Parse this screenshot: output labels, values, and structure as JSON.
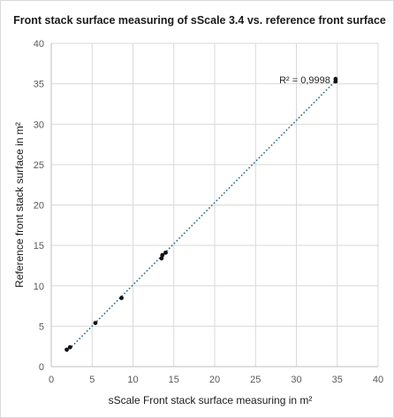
{
  "chart_data": {
    "type": "scatter",
    "title": "Front stack surface measuring of sScale 3.4 vs. reference front surface",
    "xlabel": "sScale Front stack surface measuring in m²",
    "ylabel": "Reference front stack surface in m²",
    "xlim": [
      0,
      40
    ],
    "ylim": [
      0,
      40
    ],
    "x_ticks": [
      0,
      5,
      10,
      15,
      20,
      25,
      30,
      35,
      40
    ],
    "y_ticks": [
      0,
      5,
      10,
      15,
      20,
      25,
      30,
      35,
      40
    ],
    "grid": true,
    "legend": "none",
    "series": [
      {
        "points": [
          {
            "x": 1.9,
            "y": 2.1
          },
          {
            "x": 2.3,
            "y": 2.4
          },
          {
            "x": 5.4,
            "y": 5.4
          },
          {
            "x": 8.6,
            "y": 8.5
          },
          {
            "x": 13.5,
            "y": 13.4
          },
          {
            "x": 13.6,
            "y": 13.8
          },
          {
            "x": 14.0,
            "y": 14.1
          },
          {
            "x": 34.8,
            "y": 35.3
          },
          {
            "x": 34.8,
            "y": 35.6
          }
        ]
      }
    ],
    "trendline": {
      "style": "dotted",
      "color": "#2e6b87",
      "x_from": 1.9,
      "x_to": 34.8
    },
    "annotation": "R² = 0,9998"
  }
}
